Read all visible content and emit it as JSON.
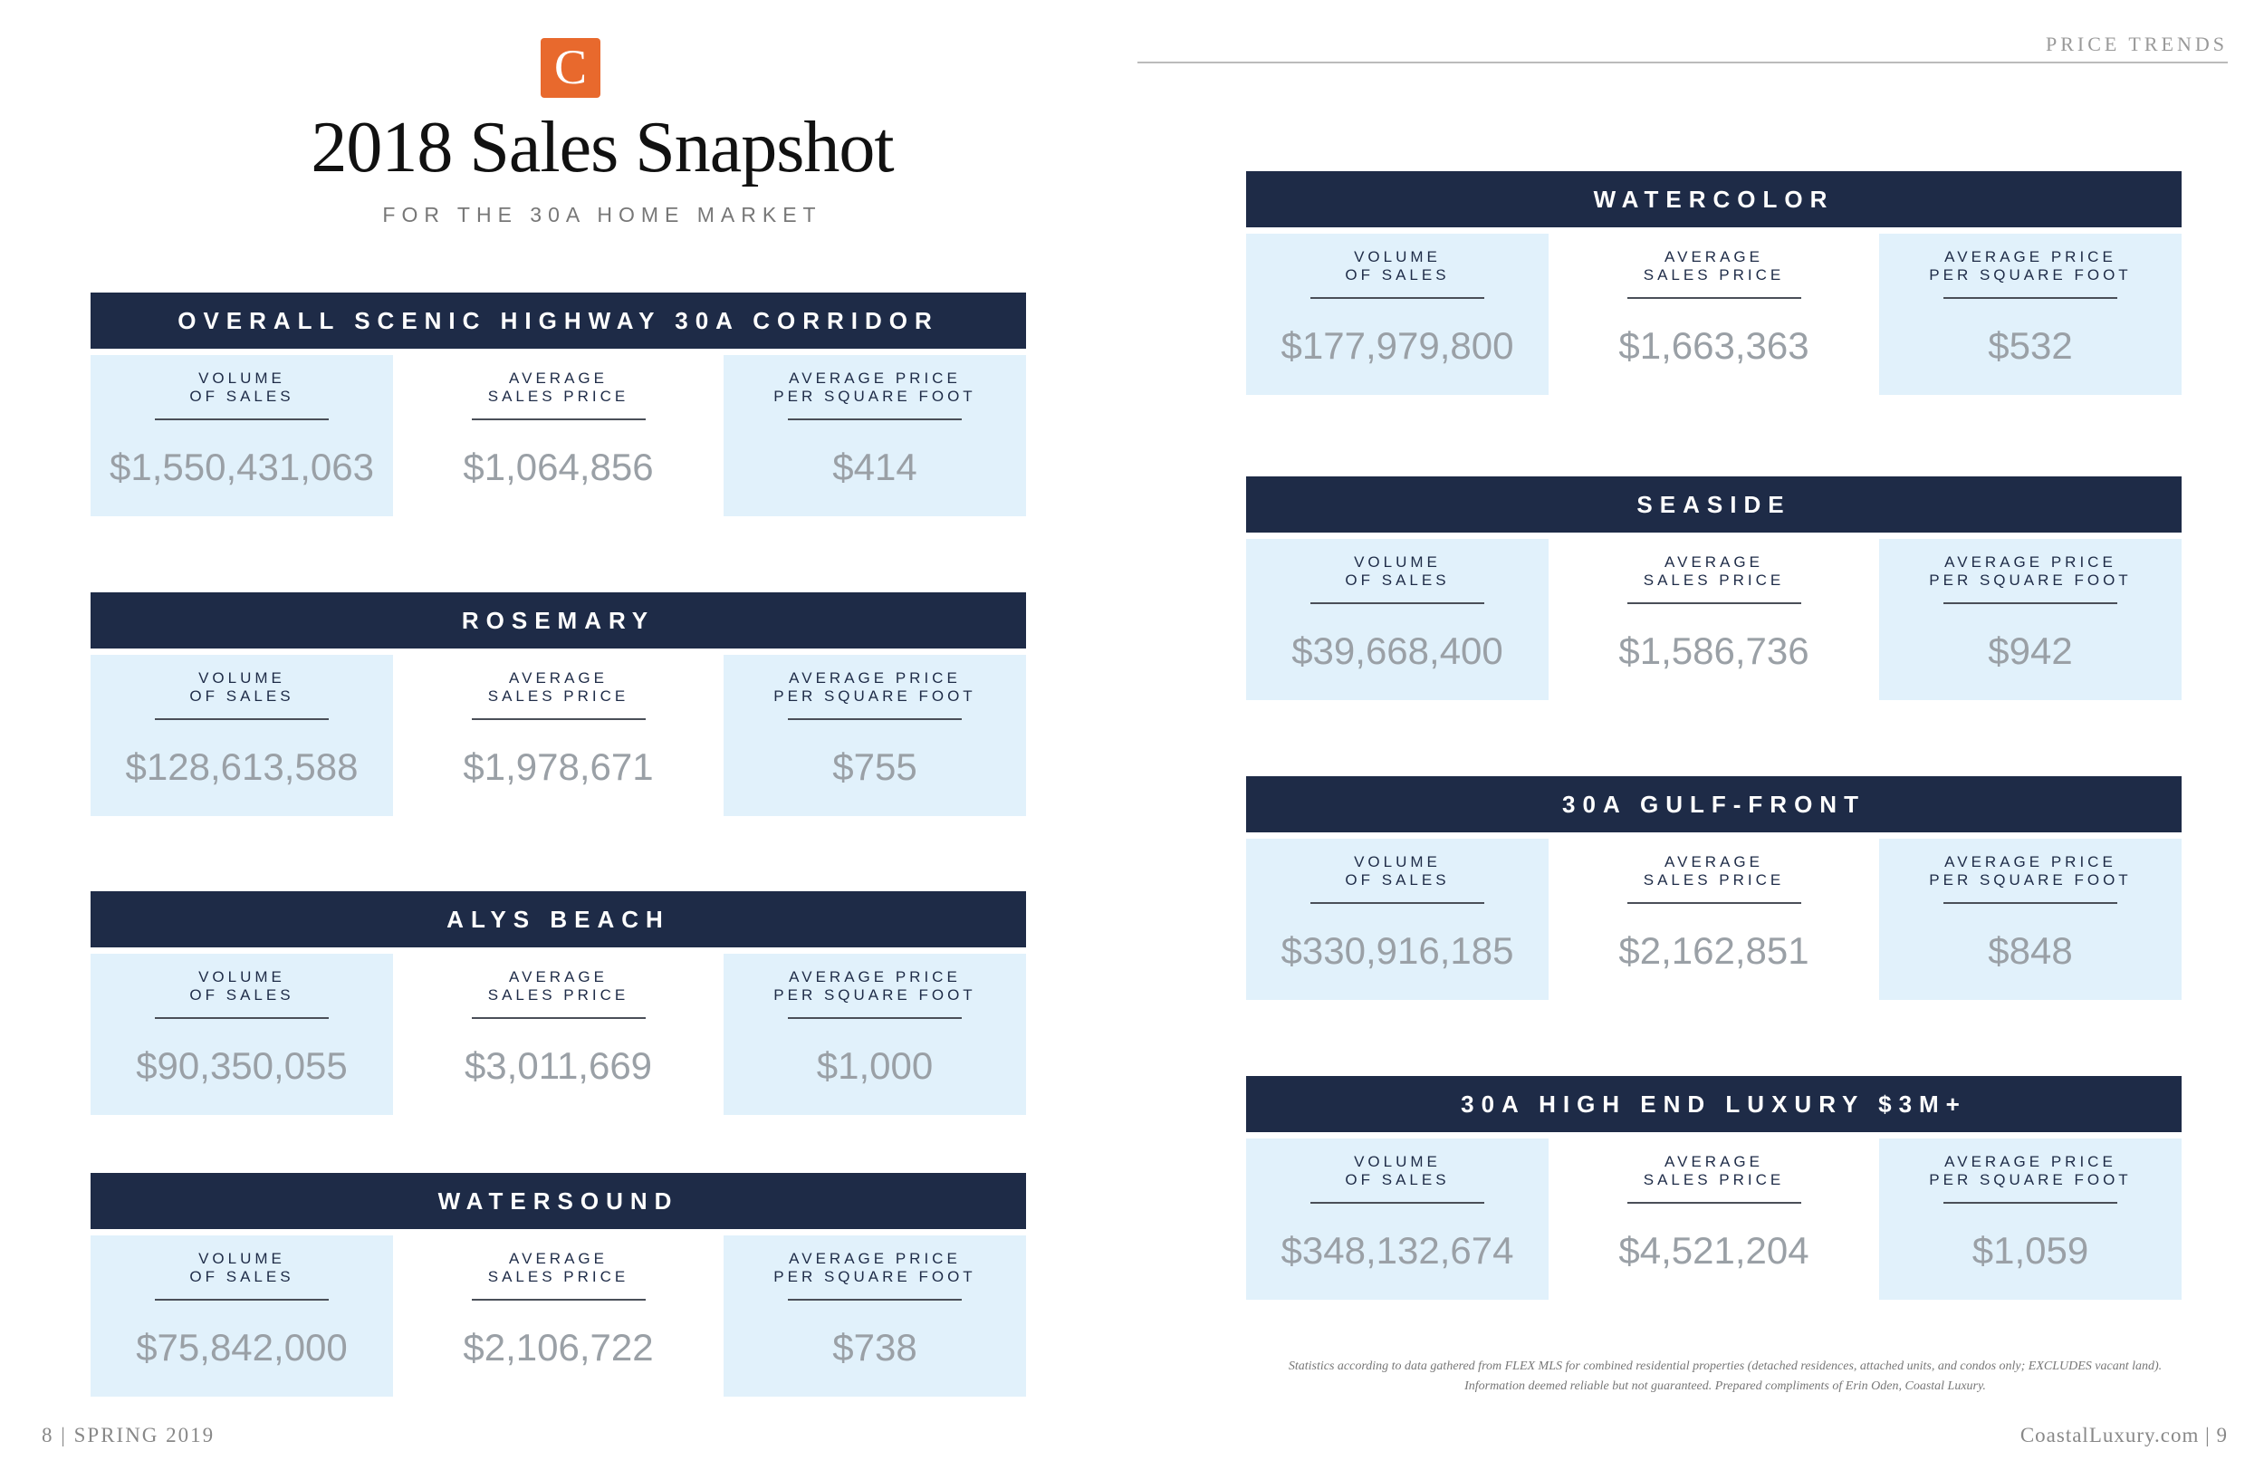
{
  "logo": {
    "letter": "C"
  },
  "title": "2018 Sales Snapshot",
  "subtitle": "FOR THE 30A HOME MARKET",
  "section_label": "PRICE TRENDS",
  "labels": {
    "volume": "VOLUME\nOF SALES",
    "avg_price": "AVERAGE\nSALES PRICE",
    "avg_sqft": "AVERAGE PRICE\nPER SQUARE FOOT"
  },
  "markets": [
    {
      "name": "OVERALL SCENIC HIGHWAY 30A CORRIDOR",
      "volume": "$1,550,431,063",
      "avg_price": "$1,064,856",
      "avg_sqft": "$414"
    },
    {
      "name": "ROSEMARY",
      "volume": "$128,613,588",
      "avg_price": "$1,978,671",
      "avg_sqft": "$755"
    },
    {
      "name": "ALYS BEACH",
      "volume": "$90,350,055",
      "avg_price": "$3,011,669",
      "avg_sqft": "$1,000"
    },
    {
      "name": "WATERSOUND",
      "volume": "$75,842,000",
      "avg_price": "$2,106,722",
      "avg_sqft": "$738"
    },
    {
      "name": "WATERCOLOR",
      "volume": "$177,979,800",
      "avg_price": "$1,663,363",
      "avg_sqft": "$532"
    },
    {
      "name": "SEASIDE",
      "volume": "$39,668,400",
      "avg_price": "$1,586,736",
      "avg_sqft": "$942"
    },
    {
      "name": "30A GULF-FRONT",
      "volume": "$330,916,185",
      "avg_price": "$2,162,851",
      "avg_sqft": "$848"
    },
    {
      "name": "30A HIGH END LUXURY $3M+",
      "volume": "$348,132,674",
      "avg_price": "$4,521,204",
      "avg_sqft": "$1,059"
    }
  ],
  "footnote": {
    "line1": "Statistics according to data gathered from FLEX MLS for combined residential properties (detached residences, attached units, and condos only; EXCLUDES vacant land).",
    "line2": "Information deemed reliable but not guaranteed.  Prepared compliments of Erin Oden, Coastal Luxury."
  },
  "footer": {
    "left": "8  |  SPRING 2019",
    "right": "CoastalLuxury.com  |  9"
  }
}
